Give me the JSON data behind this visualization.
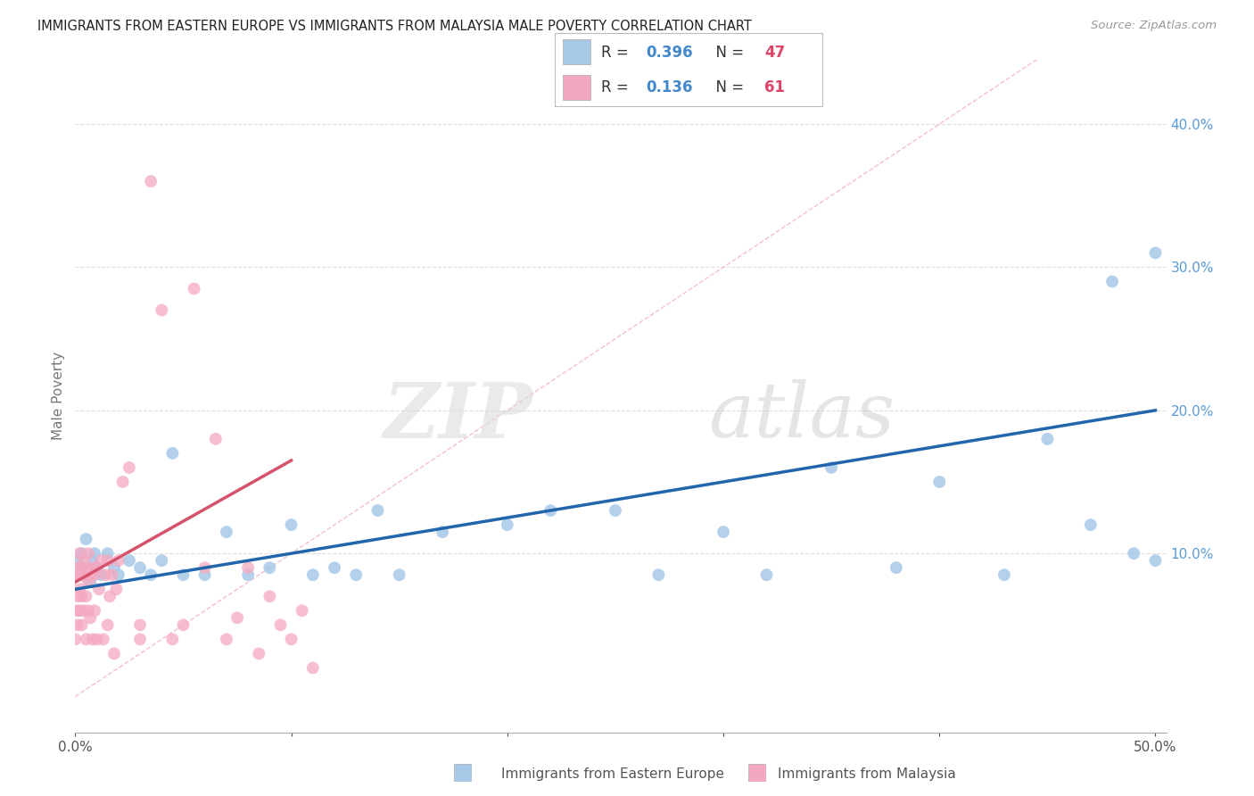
{
  "title": "IMMIGRANTS FROM EASTERN EUROPE VS IMMIGRANTS FROM MALAYSIA MALE POVERTY CORRELATION CHART",
  "source": "Source: ZipAtlas.com",
  "ylabel": "Male Poverty",
  "xlim": [
    0.0,
    0.505
  ],
  "ylim": [
    -0.025,
    0.445
  ],
  "blue_color": "#A8C8E8",
  "pink_color": "#F4A8C0",
  "blue_line_color": "#2166AC",
  "pink_line_color": "#D6536D",
  "diagonal_color": "#CCCCCC",
  "R_blue": "0.396",
  "N_blue": "47",
  "R_pink": "0.136",
  "N_pink": "61",
  "legend_label_blue": "Immigrants from Eastern Europe",
  "legend_label_pink": "Immigrants from Malaysia",
  "watermark": "ZIPatlas",
  "blue_scatter_x": [
    0.001,
    0.002,
    0.003,
    0.004,
    0.005,
    0.006,
    0.007,
    0.008,
    0.009,
    0.01,
    0.012,
    0.015,
    0.018,
    0.02,
    0.025,
    0.03,
    0.035,
    0.04,
    0.045,
    0.05,
    0.06,
    0.07,
    0.08,
    0.09,
    0.1,
    0.11,
    0.12,
    0.13,
    0.14,
    0.15,
    0.17,
    0.2,
    0.22,
    0.25,
    0.27,
    0.3,
    0.32,
    0.35,
    0.38,
    0.4,
    0.43,
    0.45,
    0.47,
    0.48,
    0.49,
    0.5,
    0.5
  ],
  "blue_scatter_y": [
    0.095,
    0.085,
    0.1,
    0.09,
    0.11,
    0.09,
    0.08,
    0.095,
    0.1,
    0.09,
    0.085,
    0.1,
    0.09,
    0.085,
    0.095,
    0.09,
    0.085,
    0.095,
    0.17,
    0.085,
    0.085,
    0.115,
    0.085,
    0.09,
    0.12,
    0.085,
    0.09,
    0.085,
    0.13,
    0.085,
    0.115,
    0.12,
    0.13,
    0.13,
    0.085,
    0.115,
    0.085,
    0.16,
    0.09,
    0.15,
    0.085,
    0.18,
    0.12,
    0.29,
    0.1,
    0.31,
    0.095
  ],
  "pink_scatter_x": [
    0.0,
    0.001,
    0.001,
    0.001,
    0.001,
    0.001,
    0.002,
    0.002,
    0.002,
    0.002,
    0.003,
    0.003,
    0.003,
    0.004,
    0.004,
    0.004,
    0.005,
    0.005,
    0.005,
    0.006,
    0.006,
    0.006,
    0.007,
    0.007,
    0.008,
    0.008,
    0.009,
    0.009,
    0.01,
    0.01,
    0.011,
    0.012,
    0.013,
    0.014,
    0.015,
    0.015,
    0.016,
    0.017,
    0.018,
    0.019,
    0.02,
    0.022,
    0.025,
    0.03,
    0.03,
    0.035,
    0.04,
    0.045,
    0.05,
    0.055,
    0.06,
    0.065,
    0.07,
    0.075,
    0.08,
    0.085,
    0.09,
    0.095,
    0.1,
    0.105,
    0.11
  ],
  "pink_scatter_y": [
    0.04,
    0.05,
    0.06,
    0.07,
    0.085,
    0.09,
    0.06,
    0.075,
    0.085,
    0.1,
    0.05,
    0.07,
    0.09,
    0.06,
    0.085,
    0.095,
    0.04,
    0.07,
    0.09,
    0.06,
    0.08,
    0.1,
    0.055,
    0.085,
    0.04,
    0.09,
    0.06,
    0.085,
    0.04,
    0.09,
    0.075,
    0.095,
    0.04,
    0.085,
    0.05,
    0.095,
    0.07,
    0.085,
    0.03,
    0.075,
    0.095,
    0.15,
    0.16,
    0.05,
    0.04,
    0.36,
    0.27,
    0.04,
    0.05,
    0.285,
    0.09,
    0.18,
    0.04,
    0.055,
    0.09,
    0.03,
    0.07,
    0.05,
    0.04,
    0.06,
    0.02
  ]
}
